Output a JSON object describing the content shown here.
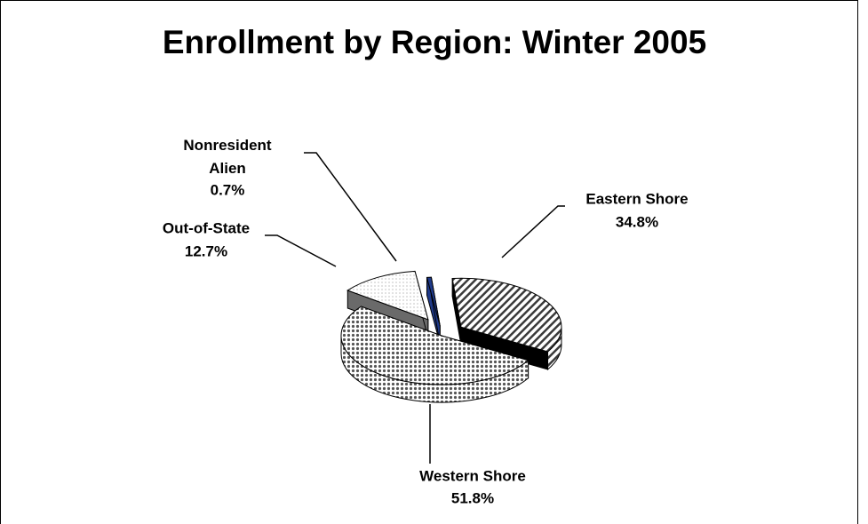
{
  "chart_data": {
    "type": "pie",
    "title": "Enrollment by Region: Winter 2005",
    "categories": [
      "Eastern Shore",
      "Western Shore",
      "Out-of-State",
      "Nonresident Alien"
    ],
    "values": [
      34.8,
      51.8,
      12.7,
      0.7
    ],
    "value_labels": [
      "34.8%",
      "51.8%",
      "12.7%",
      "0.7%"
    ],
    "colors": [
      "#3a3a3a",
      "#555555",
      "#9a9a9a",
      "#1f3a8a"
    ]
  }
}
